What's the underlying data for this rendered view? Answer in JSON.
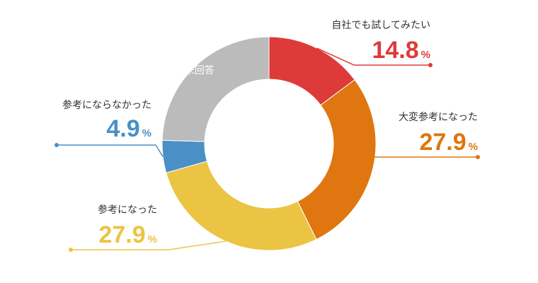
{
  "chart_data": {
    "type": "pie",
    "style": "donut",
    "unit": "%",
    "slices": [
      {
        "label": "自社でも試してみたい",
        "value": 14.8,
        "display": "14.8",
        "color": "#dd3b39"
      },
      {
        "label": "大変参考になった",
        "value": 27.9,
        "display": "27.9",
        "color": "#e0760f"
      },
      {
        "label": "参考になった",
        "value": 27.9,
        "display": "27.9",
        "color": "#ebc444"
      },
      {
        "label": "参考にならなかった",
        "value": 4.9,
        "display": "4.9",
        "color": "#4a90c6"
      },
      {
        "label": "未回答",
        "value": 24.5,
        "display": "",
        "color": "#bbbbbb"
      }
    ]
  }
}
